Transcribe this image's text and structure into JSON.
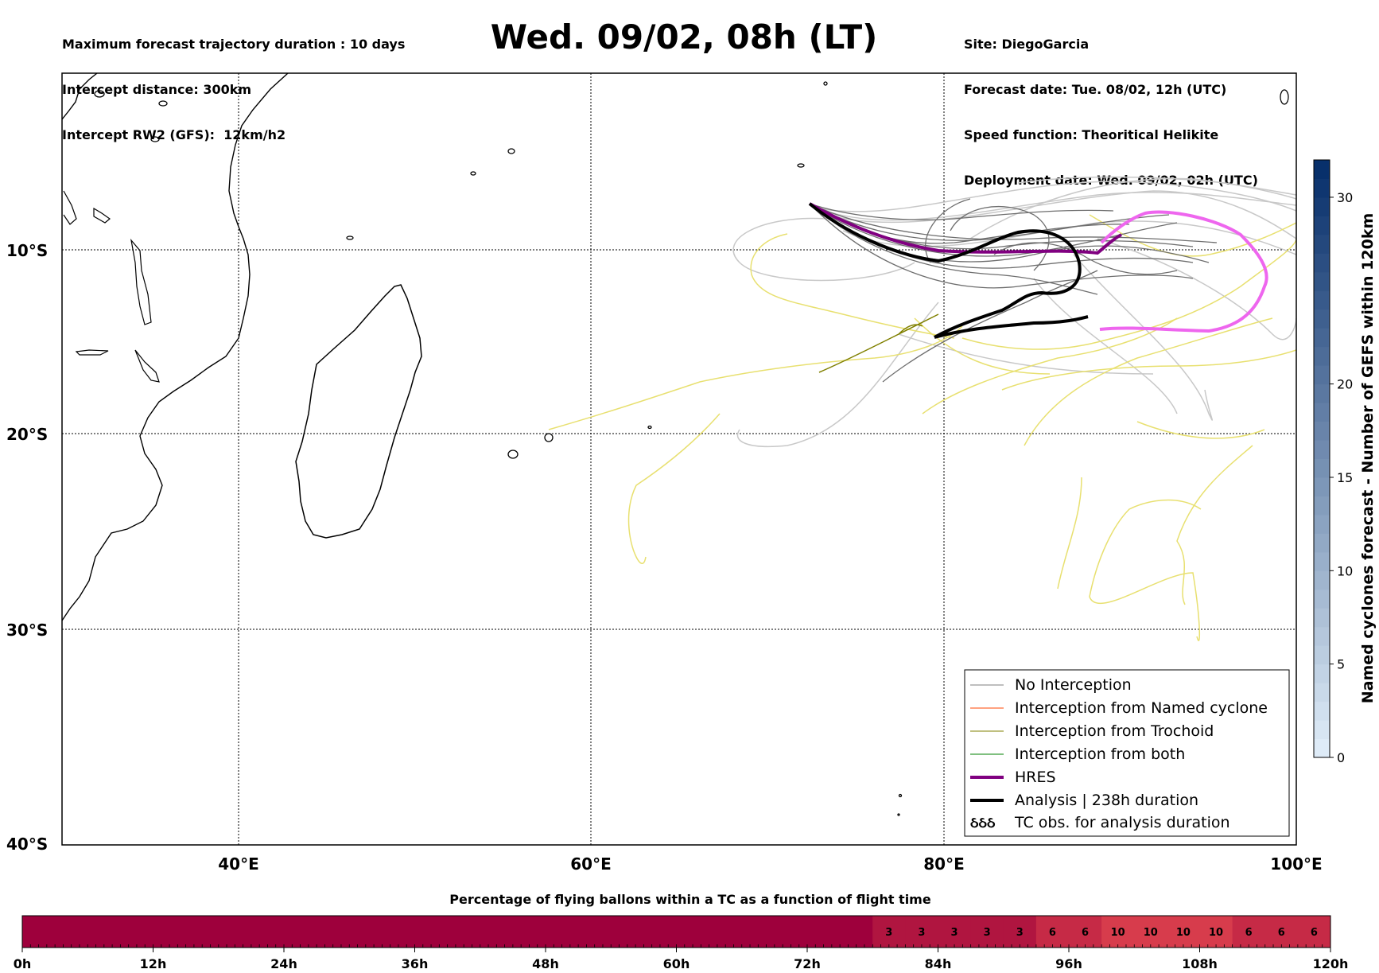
{
  "header": {
    "left_lines": [
      "Maximum forecast trajectory duration : 10 days",
      "Intercept distance: 300km",
      "Intercept RW2 (GFS):  12km/h2"
    ],
    "title": "Wed. 09/02, 08h (LT)",
    "right_lines": [
      "Site: DiegoGarcia",
      "Forecast date: Tue. 08/02, 12h (UTC)",
      "Speed function: Theoritical Helikite",
      "Deployment date: Wed. 09/02, 02h (UTC)"
    ]
  },
  "map": {
    "lat_labels": [
      "10°S",
      "20°S",
      "30°S",
      "40°S"
    ],
    "lon_labels": [
      "40°E",
      "60°E",
      "80°E",
      "100°E"
    ],
    "extent": {
      "lon": [
        30,
        100
      ],
      "lat": [
        -40,
        -0.5
      ]
    },
    "colors": {
      "no_interception": "#7f7f7f",
      "named_cyclone": "#ff4500",
      "trochoid": "#808000",
      "both": "#008000",
      "hres": "#800080",
      "analysis": "#000000",
      "tc_obs_track": "#ee66ee",
      "yellow_tracks": "#e8e070",
      "light_tracks": "#c8c8c8"
    }
  },
  "legend": {
    "items": [
      {
        "label": "No Interception",
        "color": "#7f7f7f",
        "width": 1
      },
      {
        "label": "Interception from Named cyclone",
        "color": "#ff4500",
        "width": 1
      },
      {
        "label": "Interception from Trochoid",
        "color": "#808000",
        "width": 1
      },
      {
        "label": "Interception from both",
        "color": "#008000",
        "width": 1
      },
      {
        "label": "HRES",
        "color": "#800080",
        "width": 4
      },
      {
        "label": "Analysis | 238h duration",
        "color": "#000000",
        "width": 4
      }
    ],
    "tc_obs_symbol": "ઠઠઠ",
    "tc_obs_label": "TC obs. for analysis duration"
  },
  "colorbar_right": {
    "label": "Named cyclones forecast - Number of GEFS within 120km",
    "ticks": [
      "0",
      "5",
      "10",
      "15",
      "20",
      "30"
    ],
    "tick_values": [
      0,
      5,
      10,
      15,
      20,
      30
    ],
    "range": [
      0,
      32
    ]
  },
  "colorbar_bottom": {
    "title": "Percentage of flying ballons within a TC as a function of flight time",
    "time_labels": [
      "0h",
      "12h",
      "24h",
      "36h",
      "48h",
      "60h",
      "72h",
      "84h",
      "96h",
      "108h",
      "120h"
    ],
    "cells": [
      "3",
      "3",
      "3",
      "3",
      "3",
      "6",
      "6",
      "10",
      "10",
      "10",
      "10",
      "6",
      "6",
      "6"
    ]
  }
}
